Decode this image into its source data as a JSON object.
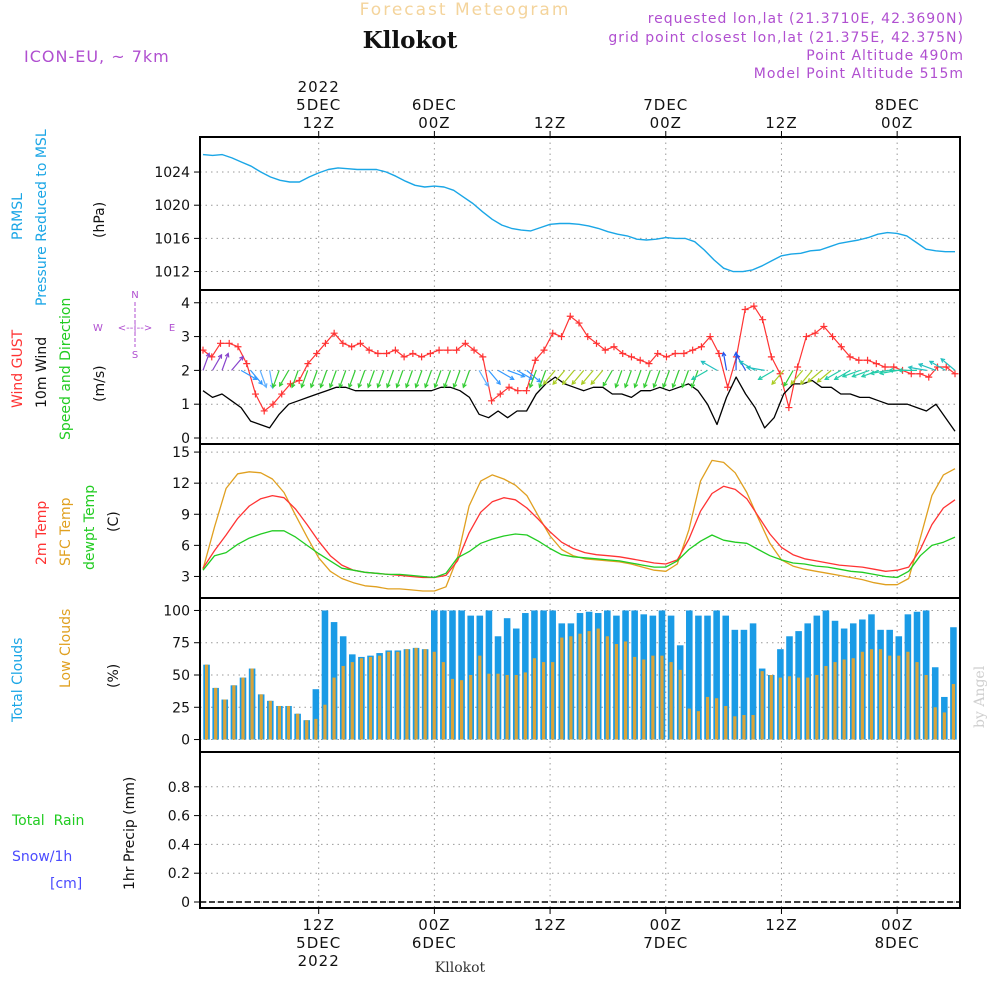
{
  "header": {
    "model": "ICON-EU, ~ 7km",
    "subtitle": "Forecast Meteogram",
    "location": "Kllokot",
    "requested": "requested lon,lat (21.3710E, 42.3690N)",
    "gridpoint": "grid point closest lon,lat (21.375E, 42.375N)",
    "point_alt": "Point Altitude 490m",
    "model_alt": "Model Point Altitude 515m",
    "footer_location": "Kllokot",
    "watermark": "by Angel"
  },
  "time_axis": {
    "top_labels": [
      {
        "h": 12,
        "lines": [
          "2022",
          "5DEC",
          "12Z"
        ]
      },
      {
        "h": 24,
        "lines": [
          "6DEC",
          "00Z"
        ]
      },
      {
        "h": 36,
        "lines": [
          "12Z"
        ]
      },
      {
        "h": 48,
        "lines": [
          "7DEC",
          "00Z"
        ]
      },
      {
        "h": 60,
        "lines": [
          "12Z"
        ]
      },
      {
        "h": 72,
        "lines": [
          "8DEC",
          "00Z"
        ]
      }
    ],
    "bottom_labels": [
      {
        "h": 12,
        "lines": [
          "12Z",
          "5DEC",
          "2022"
        ]
      },
      {
        "h": 24,
        "lines": [
          "00Z",
          "6DEC"
        ]
      },
      {
        "h": 36,
        "lines": [
          "12Z"
        ]
      },
      {
        "h": 48,
        "lines": [
          "00Z",
          "7DEC"
        ]
      },
      {
        "h": 60,
        "lines": [
          "12Z"
        ]
      },
      {
        "h": 72,
        "lines": [
          "00Z",
          "8DEC"
        ]
      }
    ]
  },
  "panel_labels": {
    "pressure": {
      "left1": "PRMSL",
      "left2": "Pressure Reduced to MSL",
      "unit": "(hPa)"
    },
    "wind": {
      "gust": "Wind GUST",
      "wind10": "10m Wind",
      "speed": "Speed and Direction",
      "unit": "(m/s)",
      "compass_n": "N",
      "compass_s": "S",
      "compass_w": "W",
      "compass_e": "E",
      "compass_arrow": "<--|-->"
    },
    "temp": {
      "t2m": "2m Temp",
      "sfc": "SFC Temp",
      "dew": "dewpt Temp",
      "unit": "(C)"
    },
    "clouds": {
      "total": "Total Clouds",
      "low": "Low Clouds",
      "unit": "(%)"
    },
    "precip": {
      "rain": "Total  Rain",
      "snow": "Snow/1h",
      "cm": "[cm]",
      "unit": "1hr Precip (mm)"
    }
  },
  "colors": {
    "pressure": "#1aa6e6",
    "gust": "#ff3333",
    "wind": "#000000",
    "t2m": "#ff3333",
    "sfc": "#e0a020",
    "dew": "#22cc22",
    "total_cloud": "#1a9be6",
    "low_cloud": "#d9a43a",
    "label_blue": "#1aa6e6",
    "label_red": "#ff3333",
    "label_green": "#22cc22",
    "label_orange": "#e0a020",
    "purple": "#b04fd0",
    "header_orange": "#f4d49c",
    "grid": "#999999"
  },
  "chart_data": [
    {
      "type": "line",
      "title": "PRMSL Pressure Reduced to MSL",
      "ylabel": "(hPa)",
      "ylim": [
        1010.5,
        1027.5
      ],
      "yticks": [
        1012,
        1016,
        1020,
        1024
      ],
      "x_hours": [
        0,
        1,
        2,
        3,
        4,
        5,
        6,
        7,
        8,
        9,
        10,
        11,
        12,
        13,
        14,
        15,
        16,
        17,
        18,
        19,
        20,
        21,
        22,
        23,
        24,
        25,
        26,
        27,
        28,
        29,
        30,
        31,
        32,
        33,
        34,
        35,
        36,
        37,
        38,
        39,
        40,
        41,
        42,
        43,
        44,
        45,
        46,
        47,
        48,
        49,
        50,
        51,
        52,
        53,
        54,
        55,
        56,
        57,
        58,
        59,
        60,
        61,
        62,
        63,
        64,
        65,
        66,
        67,
        68,
        69,
        70,
        71,
        72,
        73,
        74,
        75,
        76,
        77,
        78
      ],
      "values": [
        1026.1,
        1026.0,
        1026.1,
        1025.7,
        1025.2,
        1024.7,
        1024.0,
        1023.4,
        1023.0,
        1022.8,
        1022.8,
        1023.4,
        1023.9,
        1024.3,
        1024.5,
        1024.4,
        1024.3,
        1024.3,
        1024.3,
        1024.0,
        1023.5,
        1022.9,
        1022.4,
        1022.2,
        1022.3,
        1022.2,
        1021.8,
        1021.0,
        1020.2,
        1019.2,
        1018.3,
        1017.6,
        1017.2,
        1017.0,
        1016.9,
        1017.3,
        1017.7,
        1017.8,
        1017.8,
        1017.7,
        1017.5,
        1017.2,
        1016.8,
        1016.5,
        1016.3,
        1015.9,
        1015.8,
        1015.9,
        1016.1,
        1016.0,
        1016.0,
        1015.6,
        1014.6,
        1013.4,
        1012.4,
        1012.0,
        1012.0,
        1012.2,
        1012.7,
        1013.3,
        1013.9,
        1014.1,
        1014.2,
        1014.5,
        1014.6,
        1015.0,
        1015.4,
        1015.6,
        1015.8,
        1016.1,
        1016.5,
        1016.7,
        1016.6,
        1016.3,
        1015.5,
        1014.7,
        1014.5,
        1014.4,
        1014.4
      ]
    },
    {
      "type": "line",
      "title": "Wind GUST / 10m Wind Speed and Direction",
      "ylabel": "(m/s)",
      "ylim": [
        0,
        4.2
      ],
      "yticks": [
        0,
        1,
        2,
        3,
        4
      ],
      "series": [
        {
          "name": "Wind GUST",
          "values": [
            2.6,
            2.4,
            2.8,
            2.8,
            2.7,
            2.2,
            1.3,
            0.8,
            1.0,
            1.3,
            1.6,
            1.7,
            2.2,
            2.5,
            2.8,
            3.1,
            2.8,
            2.7,
            2.8,
            2.6,
            2.5,
            2.5,
            2.6,
            2.4,
            2.5,
            2.4,
            2.5,
            2.6,
            2.6,
            2.6,
            2.8,
            2.6,
            2.4,
            1.1,
            1.3,
            1.5,
            1.4,
            1.4,
            2.3,
            2.6,
            3.1,
            3.0,
            3.6,
            3.4,
            3.0,
            2.8,
            2.6,
            2.7,
            2.5,
            2.4,
            2.3,
            2.2,
            2.5,
            2.4,
            2.5,
            2.5,
            2.6,
            2.7,
            3.0,
            2.5,
            1.5,
            2.4,
            3.8,
            3.9,
            3.5,
            2.4,
            1.9,
            0.9,
            2.1,
            3.0,
            3.1,
            3.3,
            3.0,
            2.7,
            2.4,
            2.3,
            2.3,
            2.2,
            2.1,
            2.1,
            2.0,
            1.9,
            1.9,
            1.8,
            2.1,
            2.1,
            1.9
          ]
        },
        {
          "name": "10m Wind",
          "values": [
            1.4,
            1.2,
            1.3,
            1.1,
            0.9,
            0.5,
            0.4,
            0.3,
            0.7,
            1.0,
            1.1,
            1.2,
            1.3,
            1.4,
            1.5,
            1.5,
            1.4,
            1.4,
            1.4,
            1.4,
            1.4,
            1.4,
            1.4,
            1.4,
            1.4,
            1.5,
            1.5,
            1.4,
            1.2,
            0.7,
            0.6,
            0.8,
            0.6,
            0.8,
            0.8,
            1.3,
            1.6,
            1.8,
            1.6,
            1.5,
            1.4,
            1.5,
            1.5,
            1.3,
            1.3,
            1.2,
            1.4,
            1.4,
            1.5,
            1.4,
            1.5,
            1.6,
            1.4,
            1.0,
            0.4,
            1.2,
            1.8,
            1.3,
            0.9,
            0.3,
            0.6,
            1.3,
            1.6,
            1.6,
            1.7,
            1.5,
            1.5,
            1.3,
            1.3,
            1.2,
            1.2,
            1.1,
            1.0,
            1.0,
            1.0,
            0.9,
            0.8,
            1.0,
            0.6,
            0.2
          ]
        },
        {
          "name": "Direction (deg)",
          "values": [
            200,
            210,
            200,
            220,
            300,
            320,
            340,
            350,
            20,
            30,
            20,
            20,
            20,
            20,
            20,
            20,
            20,
            20,
            20,
            20,
            20,
            20,
            20,
            20,
            20,
            20,
            20,
            20,
            20,
            330,
            320,
            300,
            290,
            300,
            310,
            20,
            20,
            40,
            40,
            40,
            40,
            40,
            40,
            30,
            20,
            20,
            20,
            20,
            20,
            20,
            20,
            20,
            20,
            60,
            120,
            170,
            180,
            150,
            120,
            100,
            60,
            40,
            30,
            40,
            40,
            50,
            50,
            60,
            60,
            70,
            70,
            70,
            80,
            80,
            90,
            90,
            100,
            110,
            120,
            130
          ]
        }
      ]
    },
    {
      "type": "line",
      "title": "2m Temp / SFC Temp / dewpt Temp",
      "ylabel": "(C)",
      "ylim": [
        1.5,
        15.2
      ],
      "yticks": [
        3,
        6,
        9,
        12,
        15
      ],
      "series": [
        {
          "name": "2m Temp",
          "values": [
            3.8,
            5.5,
            7.0,
            8.6,
            9.8,
            10.5,
            10.8,
            10.6,
            9.5,
            8.0,
            6.4,
            5.0,
            4.1,
            3.6,
            3.4,
            3.3,
            3.2,
            3.1,
            3.0,
            2.9,
            2.9,
            3.1,
            4.5,
            7.2,
            9.2,
            10.2,
            10.6,
            10.4,
            9.6,
            8.5,
            7.3,
            6.3,
            5.7,
            5.3,
            5.1,
            5.0,
            4.9,
            4.7,
            4.5,
            4.3,
            4.2,
            4.6,
            6.6,
            9.3,
            11.0,
            11.7,
            11.4,
            10.5,
            8.8,
            7.1,
            5.8,
            5.1,
            4.7,
            4.5,
            4.3,
            4.1,
            4.0,
            3.9,
            3.7,
            3.5,
            3.6,
            3.9,
            5.6,
            8.0,
            9.6,
            10.4
          ]
        },
        {
          "name": "SFC Temp",
          "values": [
            3.7,
            7.8,
            11.5,
            12.9,
            13.1,
            13.0,
            12.4,
            11.1,
            8.9,
            6.8,
            4.8,
            3.5,
            2.8,
            2.4,
            2.1,
            2.0,
            1.8,
            1.8,
            1.7,
            1.6,
            1.6,
            2.0,
            4.8,
            9.8,
            12.2,
            12.8,
            12.4,
            11.8,
            10.8,
            8.8,
            6.9,
            5.6,
            5.0,
            4.7,
            4.6,
            4.5,
            4.4,
            4.2,
            3.9,
            3.6,
            3.5,
            4.2,
            7.5,
            12.2,
            14.2,
            14.0,
            13.0,
            11.1,
            8.6,
            6.2,
            4.6,
            4.0,
            3.7,
            3.5,
            3.3,
            3.1,
            2.9,
            2.7,
            2.4,
            2.2,
            2.2,
            2.8,
            6.7,
            10.8,
            12.8,
            13.4
          ]
        },
        {
          "name": "dewpt Temp",
          "values": [
            3.6,
            5.0,
            5.3,
            6.1,
            6.7,
            7.1,
            7.4,
            7.4,
            6.8,
            6.0,
            5.2,
            4.5,
            3.8,
            3.6,
            3.4,
            3.3,
            3.2,
            3.2,
            3.1,
            3.0,
            2.9,
            3.3,
            4.8,
            5.4,
            6.2,
            6.6,
            6.9,
            7.1,
            7.0,
            6.4,
            5.7,
            5.1,
            4.9,
            4.8,
            4.7,
            4.6,
            4.5,
            4.3,
            4.1,
            3.9,
            3.9,
            4.5,
            5.6,
            6.4,
            7.0,
            6.5,
            6.3,
            6.2,
            5.6,
            5.0,
            4.6,
            4.3,
            4.2,
            4.0,
            3.9,
            3.7,
            3.5,
            3.4,
            3.2,
            3.0,
            2.9,
            3.5,
            5.0,
            6.0,
            6.3,
            6.8
          ]
        }
      ]
    },
    {
      "type": "bar",
      "title": "Total Clouds / Low Clouds",
      "ylabel": "(%)",
      "ylim": [
        -5,
        105
      ],
      "yticks": [
        0,
        25,
        50,
        75,
        100
      ],
      "series": [
        {
          "name": "Total Clouds",
          "values": [
            58,
            40,
            31,
            42,
            48,
            55,
            35,
            30,
            26,
            26,
            20,
            15,
            39,
            100,
            91,
            80,
            66,
            64,
            65,
            67,
            69,
            69,
            70,
            71,
            70,
            100,
            100,
            100,
            100,
            96,
            96,
            100,
            80,
            94,
            86,
            98,
            100,
            100,
            100,
            90,
            90,
            98,
            99,
            98,
            100,
            96,
            100,
            100,
            97,
            96,
            100,
            96,
            73,
            100,
            96,
            96,
            100,
            96,
            85,
            85,
            90,
            55,
            50,
            70,
            80,
            84,
            90,
            96,
            100,
            92,
            86,
            90,
            93,
            97,
            85,
            85,
            80,
            97,
            99,
            100,
            56,
            33,
            87
          ]
        },
        {
          "name": "Low Clouds",
          "values": [
            58,
            40,
            31,
            42,
            48,
            55,
            35,
            30,
            26,
            26,
            20,
            15,
            16,
            27,
            48,
            57,
            60,
            63,
            64,
            65,
            68,
            68,
            70,
            71,
            70,
            68,
            60,
            47,
            46,
            50,
            65,
            51,
            51,
            50,
            50,
            52,
            63,
            60,
            60,
            79,
            80,
            82,
            84,
            86,
            80,
            74,
            76,
            64,
            62,
            65,
            65,
            60,
            54,
            24,
            22,
            33,
            32,
            26,
            18,
            19,
            19,
            53,
            50,
            48,
            49,
            48,
            48,
            50,
            57,
            60,
            62,
            63,
            68,
            70,
            70,
            65,
            65,
            68,
            60,
            50,
            25,
            21,
            43
          ]
        }
      ]
    },
    {
      "type": "line",
      "title": "1hr Precip (mm)",
      "ylabel": "1hr Precip (mm)",
      "ylim": [
        0,
        1.0
      ],
      "yticks": [
        0,
        0.2,
        0.4,
        0.6,
        0.8
      ],
      "series": [
        {
          "name": "Total Rain",
          "values": []
        },
        {
          "name": "Snow/1h",
          "values": []
        }
      ]
    }
  ]
}
